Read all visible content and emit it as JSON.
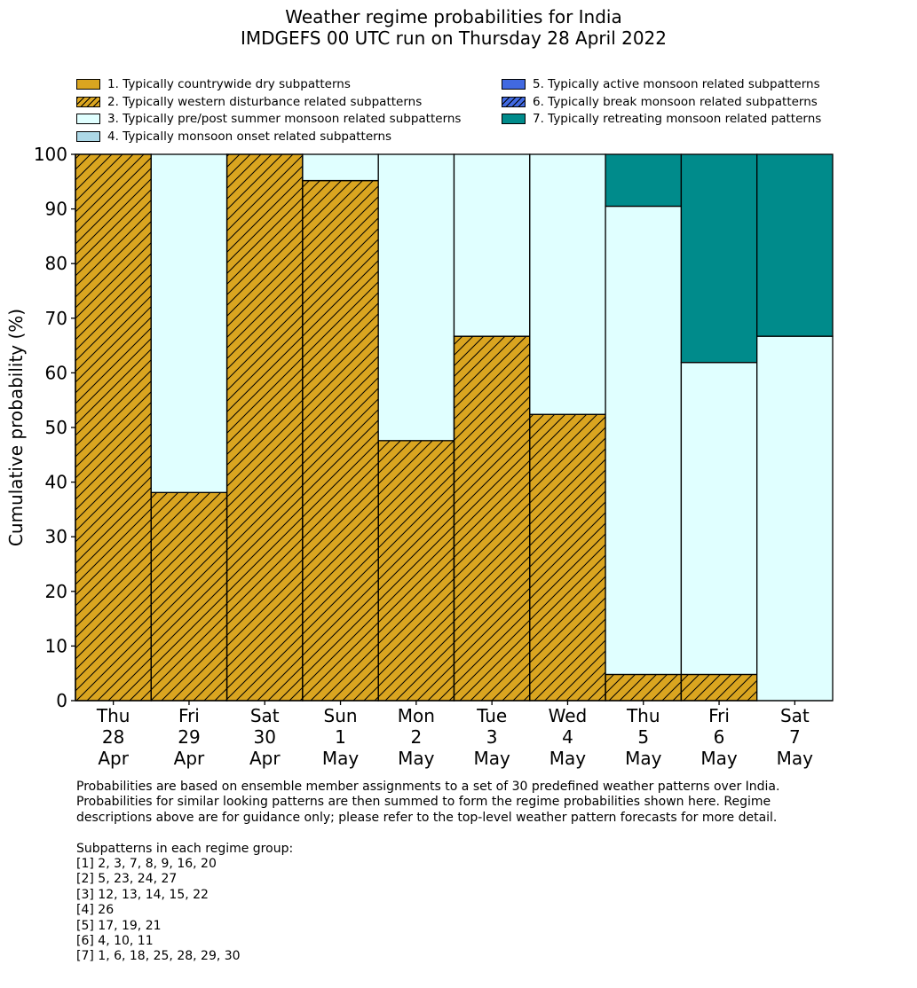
{
  "title": {
    "line1": "Weather regime probabilities for India",
    "line2": "IMDGEFS 00 UTC run on Thursday 28 April 2022"
  },
  "legend": [
    {
      "label": "1. Typically countrywide dry subpatterns",
      "color": "#daa520",
      "hatch": false
    },
    {
      "label": "2. Typically western disturbance related subpatterns",
      "color": "#daa520",
      "hatch": true
    },
    {
      "label": "3. Typically pre/post summer monsoon related subpatterns",
      "color": "#e0ffff",
      "hatch": false
    },
    {
      "label": "4. Typically monsoon onset related subpatterns",
      "color": "#add8e6",
      "hatch": false
    },
    {
      "label": "5. Typically active monsoon related subpatterns",
      "color": "#4169e1",
      "hatch": false
    },
    {
      "label": "6. Typically break monsoon related subpatterns",
      "color": "#4169e1",
      "hatch": true
    },
    {
      "label": "7. Typically retreating monsoon related patterns",
      "color": "#008b8b",
      "hatch": false
    }
  ],
  "chart_data": {
    "type": "bar",
    "stacked": true,
    "ylabel": "Cumulative probability (%)",
    "ylim": [
      0,
      100
    ],
    "yticks": [
      0,
      10,
      20,
      30,
      40,
      50,
      60,
      70,
      80,
      90,
      100
    ],
    "categories": [
      [
        "Thu",
        "28",
        "Apr"
      ],
      [
        "Fri",
        "29",
        "Apr"
      ],
      [
        "Sat",
        "30",
        "Apr"
      ],
      [
        "Sun",
        "1",
        "May"
      ],
      [
        "Mon",
        "2",
        "May"
      ],
      [
        "Tue",
        "3",
        "May"
      ],
      [
        "Wed",
        "4",
        "May"
      ],
      [
        "Thu",
        "5",
        "May"
      ],
      [
        "Fri",
        "6",
        "May"
      ],
      [
        "Sat",
        "7",
        "May"
      ]
    ],
    "series": [
      {
        "name": "1. Typically countrywide dry subpatterns",
        "values": [
          0,
          0,
          0,
          0,
          0,
          0,
          0,
          0,
          0,
          0
        ]
      },
      {
        "name": "2. Typically western disturbance related subpatterns",
        "values": [
          100,
          38.1,
          100,
          95.2,
          47.6,
          66.7,
          52.4,
          4.8,
          4.8,
          0
        ]
      },
      {
        "name": "3. Typically pre/post summer monsoon related subpatterns",
        "values": [
          0,
          61.9,
          0,
          4.8,
          52.4,
          33.3,
          47.6,
          85.7,
          57.1,
          66.7
        ]
      },
      {
        "name": "4. Typically monsoon onset related subpatterns",
        "values": [
          0,
          0,
          0,
          0,
          0,
          0,
          0,
          0,
          0,
          0
        ]
      },
      {
        "name": "5. Typically active monsoon related subpatterns",
        "values": [
          0,
          0,
          0,
          0,
          0,
          0,
          0,
          0,
          0,
          0
        ]
      },
      {
        "name": "6. Typically break monsoon related subpatterns",
        "values": [
          0,
          0,
          0,
          0,
          0,
          0,
          0,
          0,
          0,
          0
        ]
      },
      {
        "name": "7. Typically retreating monsoon related patterns",
        "values": [
          0,
          0,
          0,
          0,
          0,
          0,
          0,
          9.5,
          38.1,
          33.3
        ]
      }
    ]
  },
  "notes": [
    "Probabilities are based on ensemble member assignments to a set of 30 predefined weather patterns over India.",
    "Probabilities for similar looking patterns are then summed to form the regime probabilities shown here. Regime",
    "descriptions above are for guidance only; please refer to the top-level weather pattern forecasts for more detail.",
    "",
    "Subpatterns in each regime group:",
    "[1] 2, 3, 7, 8, 9, 16, 20",
    "[2] 5, 23, 24, 27",
    "[3] 12, 13, 14, 15, 22",
    "[4] 26",
    "[5] 17, 19, 21",
    "[6] 4, 10, 11",
    "[7] 1, 6, 18, 25, 28, 29, 30"
  ]
}
